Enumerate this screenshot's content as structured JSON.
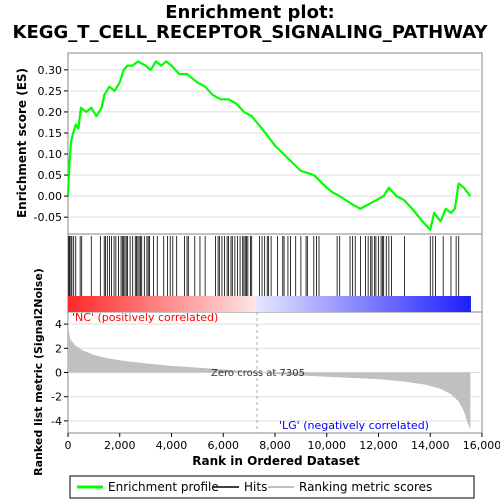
{
  "chart_data": {
    "type": "line",
    "title_line1": "Enrichment plot:",
    "title_line2": "KEGG_T_CELL_RECEPTOR_SIGNALING_PATHWAY",
    "es_ylabel": "Enrichment score (ES)",
    "metric_ylabel": "Ranked list metric (Signal2Noise)",
    "xlabel": "Rank in Ordered Dataset",
    "x_ticks": [
      "0",
      "2,000",
      "4,000",
      "6,000",
      "8,000",
      "10,000",
      "12,000",
      "14,000",
      "16,000"
    ],
    "x_tick_values": [
      0,
      2000,
      4000,
      6000,
      8000,
      10000,
      12000,
      14000,
      16000
    ],
    "xlim": [
      0,
      16000
    ],
    "es_ylim": [
      -0.09,
      0.34
    ],
    "es_ticks": [
      "-0.05",
      "0.00",
      "0.05",
      "0.10",
      "0.15",
      "0.20",
      "0.25",
      "0.30"
    ],
    "es_tick_values": [
      -0.05,
      0.0,
      0.05,
      0.1,
      0.15,
      0.2,
      0.25,
      0.3
    ],
    "metric_ylim": [
      -5,
      5
    ],
    "metric_ticks": [
      "-4",
      "-2",
      "0",
      "2",
      "4"
    ],
    "metric_tick_values": [
      -4,
      -2,
      0,
      2,
      4
    ],
    "zero_cross_label": "Zero cross at 7305",
    "zero_cross": 7305,
    "pos_label": "'NC' (positively correlated)",
    "neg_label": "'LG' (negatively correlated)",
    "colors": {
      "profile": "#00ff00",
      "pos_label": "#ff0000",
      "neg_label": "#0000ff",
      "metric_fill": "#c0c0c0",
      "grid": "#dddddd"
    },
    "legend": [
      {
        "label": "Enrichment profile",
        "color": "#00ff00"
      },
      {
        "label": "Hits",
        "color": "#000000"
      },
      {
        "label": "Ranking metric scores",
        "color": "#c0c0c0"
      }
    ],
    "es_curve": [
      [
        0,
        0.0
      ],
      [
        40,
        0.06
      ],
      [
        80,
        0.1
      ],
      [
        120,
        0.13
      ],
      [
        200,
        0.15
      ],
      [
        300,
        0.17
      ],
      [
        400,
        0.16
      ],
      [
        500,
        0.21
      ],
      [
        700,
        0.2
      ],
      [
        900,
        0.21
      ],
      [
        1100,
        0.19
      ],
      [
        1300,
        0.21
      ],
      [
        1400,
        0.24
      ],
      [
        1600,
        0.26
      ],
      [
        1800,
        0.25
      ],
      [
        2000,
        0.27
      ],
      [
        2150,
        0.3
      ],
      [
        2300,
        0.31
      ],
      [
        2500,
        0.31
      ],
      [
        2700,
        0.32
      ],
      [
        3000,
        0.31
      ],
      [
        3200,
        0.3
      ],
      [
        3400,
        0.32
      ],
      [
        3600,
        0.31
      ],
      [
        3800,
        0.32
      ],
      [
        4000,
        0.31
      ],
      [
        4300,
        0.29
      ],
      [
        4600,
        0.29
      ],
      [
        5000,
        0.27
      ],
      [
        5300,
        0.26
      ],
      [
        5600,
        0.24
      ],
      [
        5900,
        0.23
      ],
      [
        6200,
        0.23
      ],
      [
        6500,
        0.22
      ],
      [
        6800,
        0.2
      ],
      [
        7100,
        0.19
      ],
      [
        7500,
        0.16
      ],
      [
        8000,
        0.12
      ],
      [
        8500,
        0.09
      ],
      [
        9000,
        0.06
      ],
      [
        9500,
        0.05
      ],
      [
        10000,
        0.02
      ],
      [
        10200,
        0.01
      ],
      [
        10500,
        0.0
      ],
      [
        11000,
        -0.02
      ],
      [
        11300,
        -0.03
      ],
      [
        11600,
        -0.02
      ],
      [
        11900,
        -0.01
      ],
      [
        12200,
        0.0
      ],
      [
        12400,
        0.02
      ],
      [
        12700,
        0.0
      ],
      [
        13000,
        -0.01
      ],
      [
        13300,
        -0.03
      ],
      [
        13700,
        -0.06
      ],
      [
        14000,
        -0.08
      ],
      [
        14150,
        -0.04
      ],
      [
        14400,
        -0.06
      ],
      [
        14600,
        -0.03
      ],
      [
        14800,
        -0.04
      ],
      [
        14950,
        -0.03
      ],
      [
        15100,
        0.03
      ],
      [
        15300,
        0.02
      ],
      [
        15550,
        0.0
      ]
    ],
    "hits": [
      30,
      60,
      110,
      150,
      220,
      300,
      470,
      530,
      900,
      1250,
      1400,
      1450,
      1520,
      1600,
      1680,
      1780,
      1850,
      1950,
      2050,
      2100,
      2150,
      2200,
      2250,
      2300,
      2400,
      2500,
      2600,
      2650,
      2700,
      2750,
      2800,
      2850,
      2950,
      3050,
      3100,
      3150,
      3300,
      3450,
      3700,
      3850,
      3950,
      4050,
      4200,
      4500,
      4600,
      4650,
      4900,
      5100,
      5300,
      5700,
      5800,
      5850,
      5950,
      6050,
      6150,
      6200,
      6300,
      6350,
      6450,
      6550,
      6650,
      6750,
      6800,
      6850,
      6900,
      6950,
      7050,
      7100,
      7400,
      7500,
      7600,
      7700,
      7750,
      7850,
      8100,
      8300,
      8350,
      8500,
      8600,
      8800,
      9000,
      9200,
      9250,
      9500,
      9600,
      9700,
      10400,
      10500,
      10900,
      11000,
      11100,
      11300,
      11500,
      11600,
      11700,
      11750,
      11850,
      11900,
      12000,
      12100,
      12150,
      12200,
      12300,
      12400,
      12500,
      13000,
      14000,
      14100,
      14200,
      14500,
      14800,
      15000,
      15100
    ],
    "metric_curve": [
      [
        0,
        4.6
      ],
      [
        30,
        3.4
      ],
      [
        100,
        2.7
      ],
      [
        300,
        2.2
      ],
      [
        600,
        1.8
      ],
      [
        1000,
        1.45
      ],
      [
        1500,
        1.2
      ],
      [
        2000,
        1.0
      ],
      [
        3000,
        0.75
      ],
      [
        4000,
        0.55
      ],
      [
        5000,
        0.4
      ],
      [
        6000,
        0.25
      ],
      [
        7000,
        0.1
      ],
      [
        7305,
        0.0
      ],
      [
        8000,
        -0.12
      ],
      [
        9000,
        -0.25
      ],
      [
        10000,
        -0.35
      ],
      [
        11000,
        -0.45
      ],
      [
        12000,
        -0.55
      ],
      [
        13000,
        -0.75
      ],
      [
        13800,
        -1.0
      ],
      [
        14400,
        -1.35
      ],
      [
        14800,
        -1.8
      ],
      [
        15100,
        -2.4
      ],
      [
        15300,
        -3.2
      ],
      [
        15450,
        -4.2
      ],
      [
        15550,
        -4.7
      ]
    ],
    "n_genes": 15550
  }
}
